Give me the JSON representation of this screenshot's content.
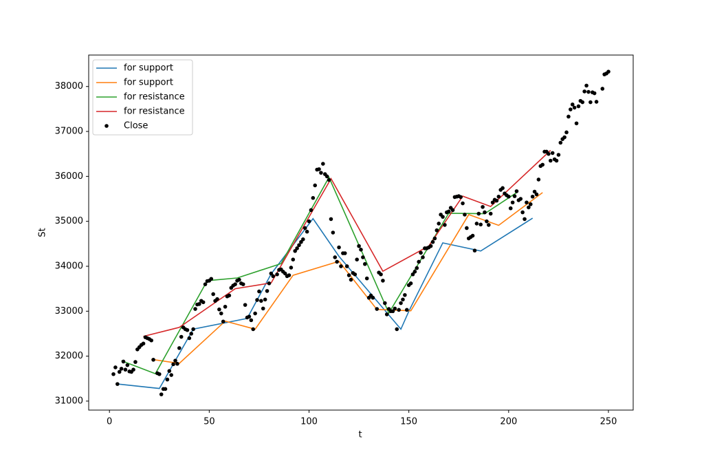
{
  "chart_data": {
    "type": "line",
    "xlabel": "t",
    "ylabel": "St",
    "xlim": [
      -10.4,
      262.4
    ],
    "ylim": [
      30800,
      38700
    ],
    "xticks": [
      0,
      50,
      100,
      150,
      200,
      250
    ],
    "yticks": [
      31000,
      32000,
      33000,
      34000,
      35000,
      36000,
      37000,
      38000
    ],
    "legend": "upper left",
    "series": [
      {
        "name": "for support",
        "type": "line",
        "color": "#1f77b4",
        "x": [
          4,
          25,
          42,
          69,
          81,
          102,
          115,
          146,
          150,
          167,
          186,
          212
        ],
        "values": [
          31380,
          31280,
          32600,
          32840,
          33830,
          35060,
          34220,
          32600,
          33000,
          34520,
          34340,
          35070
        ]
      },
      {
        "name": "for support",
        "type": "line",
        "color": "#ff7f0e",
        "x": [
          21,
          35,
          58,
          73,
          92,
          115,
          134,
          151,
          180,
          195,
          217
        ],
        "values": [
          31930,
          31840,
          32780,
          32600,
          33800,
          34110,
          33040,
          33010,
          35150,
          34910,
          35640
        ]
      },
      {
        "name": "for resistance",
        "type": "line",
        "color": "#2ca02c",
        "x": [
          6,
          23,
          49,
          64,
          86,
          110,
          140,
          170,
          188,
          204
        ],
        "values": [
          31900,
          31610,
          33680,
          33740,
          34060,
          35980,
          32960,
          35180,
          35170,
          35640
        ]
      },
      {
        "name": "for resistance",
        "type": "line",
        "color": "#d62728",
        "x": [
          17,
          35,
          63,
          81,
          111,
          137,
          160,
          177,
          191,
          221
        ],
        "values": [
          32440,
          32640,
          33500,
          33630,
          35950,
          33890,
          34450,
          35560,
          35330,
          36580
        ]
      },
      {
        "name": "Close",
        "type": "scatter",
        "color": "#000000",
        "x": [
          2,
          3,
          4,
          5,
          6,
          7,
          8,
          9,
          10,
          11,
          12,
          13,
          14,
          15,
          16,
          17,
          18,
          19,
          20,
          21,
          22,
          24,
          25,
          26,
          27,
          28,
          29,
          30,
          31,
          32,
          33,
          34,
          35,
          36,
          37,
          38,
          39,
          40,
          41,
          42,
          43,
          44,
          45,
          46,
          47,
          48,
          49,
          50,
          51,
          52,
          53,
          54,
          55,
          56,
          57,
          58,
          59,
          60,
          61,
          62,
          63,
          64,
          65,
          66,
          67,
          68,
          69,
          70,
          71,
          72,
          73,
          74,
          75,
          76,
          77,
          78,
          79,
          80,
          81,
          82,
          84,
          85,
          86,
          87,
          88,
          89,
          90,
          91,
          92,
          93,
          94,
          95,
          96,
          97,
          98,
          99,
          100,
          101,
          102,
          103,
          104,
          105,
          106,
          107,
          108,
          109,
          110,
          111,
          112,
          113,
          114,
          115,
          116,
          117,
          118,
          119,
          120,
          121,
          122,
          123,
          124,
          125,
          126,
          127,
          128,
          129,
          130,
          131,
          132,
          134,
          135,
          136,
          137,
          138,
          139,
          140,
          141,
          142,
          143,
          144,
          145,
          146,
          147,
          148,
          149,
          150,
          151,
          152,
          153,
          154,
          155,
          156,
          157,
          158,
          159,
          160,
          161,
          162,
          163,
          164,
          165,
          166,
          167,
          168,
          169,
          170,
          171,
          172,
          173,
          174,
          175,
          176,
          177,
          178,
          179,
          180,
          181,
          182,
          183,
          184,
          185,
          186,
          187,
          188,
          189,
          190,
          191,
          192,
          193,
          194,
          195,
          196,
          197,
          198,
          199,
          200,
          201,
          202,
          203,
          204,
          205,
          206,
          207,
          208,
          209,
          210,
          211,
          212,
          213,
          214,
          215,
          216,
          217,
          218,
          219,
          220,
          221,
          222,
          223,
          224,
          225,
          226,
          227,
          228,
          229,
          230,
          231,
          232,
          233,
          234,
          235,
          236,
          237,
          238,
          239,
          240,
          241,
          242,
          243,
          244,
          247,
          248,
          249,
          250
        ],
        "values": [
          31600,
          31750,
          31380,
          31650,
          31720,
          31880,
          31700,
          31800,
          31660,
          31650,
          31700,
          31870,
          32150,
          32200,
          32250,
          32280,
          32420,
          32400,
          32380,
          32350,
          31920,
          31620,
          31600,
          31150,
          31270,
          31270,
          31480,
          31670,
          31580,
          31820,
          31900,
          31830,
          32180,
          32430,
          32640,
          32600,
          32580,
          32400,
          32500,
          32600,
          33050,
          33150,
          33160,
          33230,
          33200,
          33600,
          33670,
          33680,
          33720,
          33380,
          33230,
          33270,
          33040,
          32950,
          32770,
          33100,
          33330,
          33350,
          33520,
          33570,
          33600,
          33680,
          33700,
          33620,
          33600,
          33140,
          32860,
          32880,
          32800,
          32600,
          32950,
          33250,
          33440,
          33230,
          33060,
          33260,
          33450,
          33620,
          33840,
          33780,
          33820,
          33920,
          33930,
          33880,
          33840,
          33780,
          33800,
          33970,
          34150,
          34340,
          34400,
          34470,
          34540,
          34600,
          34850,
          34770,
          35000,
          35250,
          35520,
          35800,
          36150,
          36160,
          36080,
          36280,
          36050,
          36000,
          35920,
          35050,
          34750,
          34200,
          34100,
          34420,
          34000,
          34290,
          34290,
          34000,
          33800,
          33700,
          33850,
          33820,
          34150,
          34450,
          34370,
          34200,
          34050,
          33730,
          33300,
          33350,
          33300,
          33050,
          33860,
          33820,
          33680,
          33180,
          32930,
          33050,
          33000,
          33000,
          33060,
          32600,
          33030,
          33180,
          33260,
          33360,
          33030,
          33580,
          33620,
          33820,
          33880,
          33960,
          34100,
          34300,
          34200,
          34400,
          34400,
          34420,
          34450,
          34540,
          34620,
          34800,
          34950,
          35150,
          35100,
          34920,
          35200,
          35220,
          35300,
          35250,
          35540,
          35550,
          35560,
          35540,
          35400,
          35150,
          34850,
          34620,
          34650,
          34680,
          34350,
          34950,
          35170,
          34930,
          35320,
          35200,
          35000,
          34920,
          35170,
          35420,
          35480,
          35460,
          35550,
          35700,
          35740,
          35620,
          35580,
          35550,
          35290,
          35420,
          35560,
          35670,
          35470,
          35500,
          35200,
          35050,
          35420,
          35310,
          35380,
          35550,
          35660,
          35600,
          35930,
          36230,
          36260,
          36550,
          36550,
          36500,
          36350,
          36520,
          36380,
          36350,
          36480,
          36750,
          36830,
          36870,
          36980,
          37330,
          37490,
          37600,
          37530,
          37180,
          37560,
          37680,
          37650,
          37890,
          38020,
          37880,
          37650,
          37870,
          37850,
          37660,
          37950,
          38270,
          38290,
          38330
        ]
      }
    ]
  }
}
